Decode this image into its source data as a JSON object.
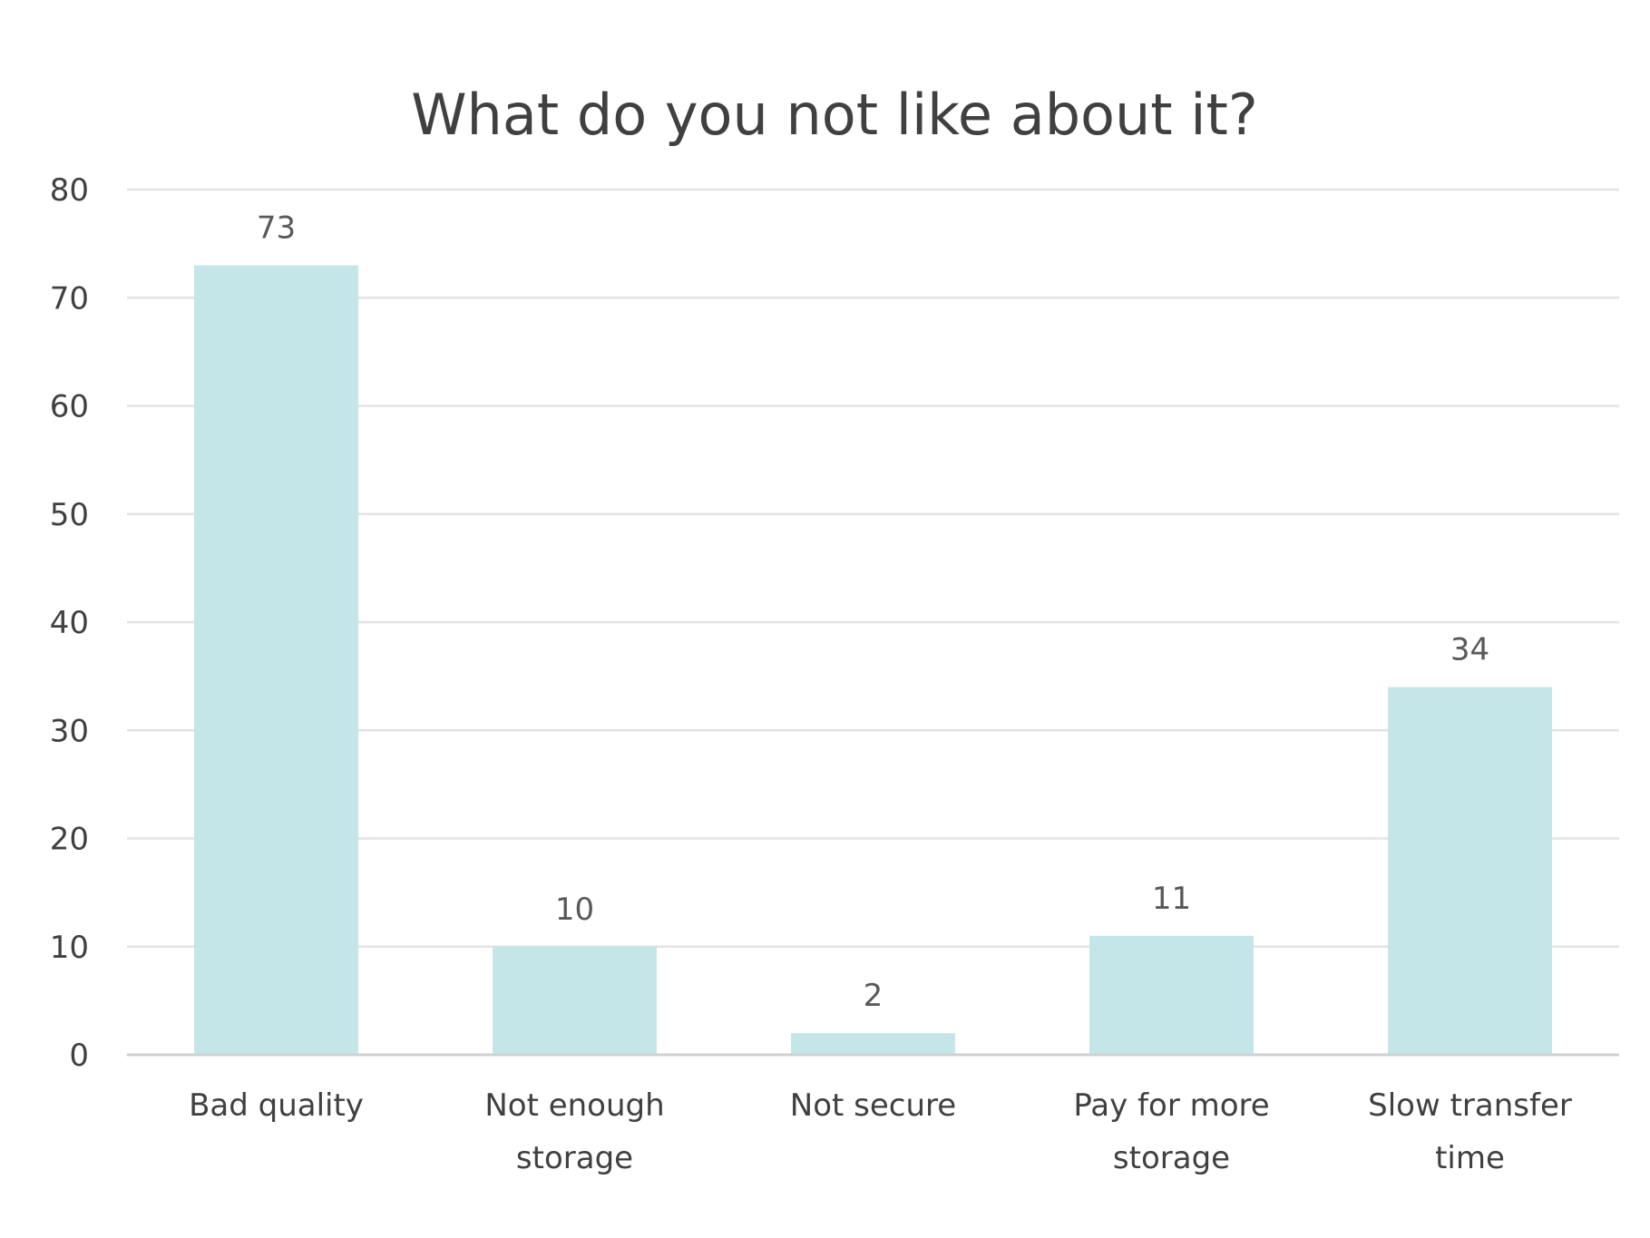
{
  "chart_data": {
    "type": "bar",
    "title": "What do you not like about it?",
    "xlabel": "",
    "ylabel": "",
    "categories": [
      [
        "Bad quality"
      ],
      [
        "Not enough",
        "storage"
      ],
      [
        "Not secure"
      ],
      [
        "Pay for more",
        "storage"
      ],
      [
        "Slow transfer",
        "time"
      ]
    ],
    "values": [
      73,
      10,
      2,
      11,
      34
    ],
    "ylim": [
      0,
      80
    ],
    "yticks": [
      0,
      10,
      20,
      30,
      40,
      50,
      60,
      70,
      80
    ],
    "grid": true,
    "legend": "none",
    "data_labels": true,
    "bar_color": "#c4e6e9"
  }
}
